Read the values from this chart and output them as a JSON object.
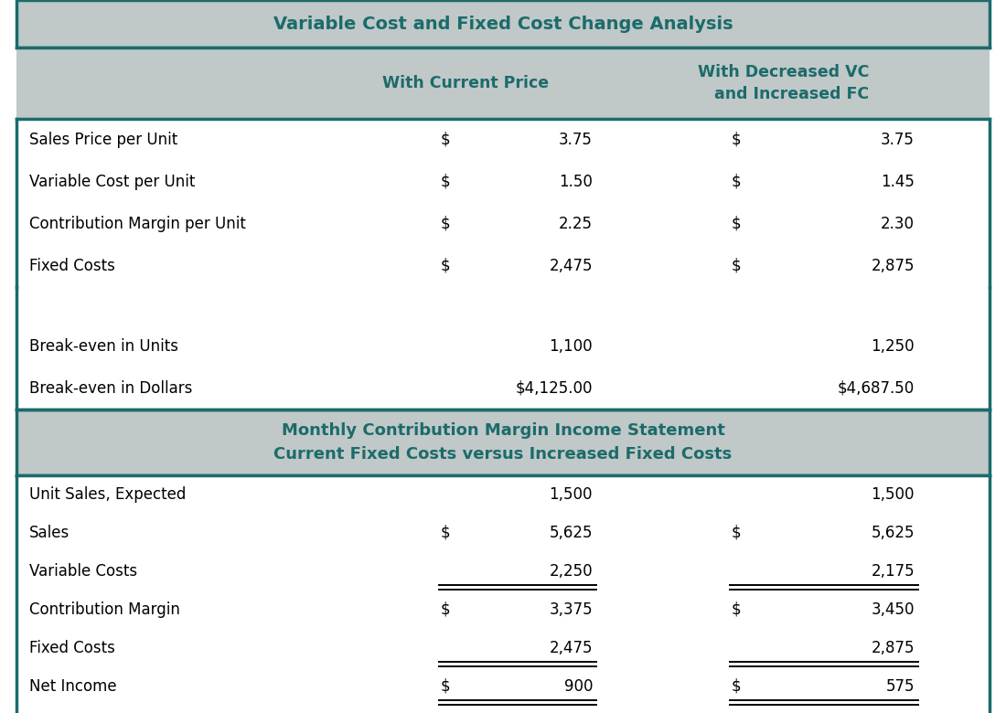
{
  "title1": "Variable Cost and Fixed Cost Change Analysis",
  "title2_line1": "Monthly Contribution Margin Income Statement",
  "title2_line2": "Current Fixed Costs versus Increased Fixed Costs",
  "col_header1": "With Current Price",
  "col_header2": "With Decreased VC\nand Increased FC",
  "section1_rows": [
    {
      "label": "Sales Price per Unit",
      "col1_dollar": true,
      "col1_val": "3.75",
      "col2_dollar": true,
      "col2_val": "3.75"
    },
    {
      "label": "Variable Cost per Unit",
      "col1_dollar": true,
      "col1_val": "1.50",
      "col2_dollar": true,
      "col2_val": "1.45"
    },
    {
      "label": "Contribution Margin per Unit",
      "col1_dollar": true,
      "col1_val": "2.25",
      "col2_dollar": true,
      "col2_val": "2.30"
    },
    {
      "label": "Fixed Costs",
      "col1_dollar": true,
      "col1_val": "2,475",
      "col2_dollar": true,
      "col2_val": "2,875"
    }
  ],
  "section1_break_rows": [
    {
      "label": "Break-even in Units",
      "col1_val": "1,100",
      "col2_val": "1,250"
    },
    {
      "label": "Break-even in Dollars",
      "col1_val": "$4,125.00",
      "col2_val": "$4,687.50"
    }
  ],
  "section2_rows": [
    {
      "label": "Unit Sales, Expected",
      "col1_dollar": false,
      "col1_val": "1,500",
      "col2_dollar": false,
      "col2_val": "1,500",
      "ul": false,
      "dul": false
    },
    {
      "label": "Sales",
      "col1_dollar": true,
      "col1_val": "5,625",
      "col2_dollar": true,
      "col2_val": "5,625",
      "ul": false,
      "dul": false
    },
    {
      "label": "Variable Costs",
      "col1_dollar": false,
      "col1_val": "2,250",
      "col2_dollar": false,
      "col2_val": "2,175",
      "ul": true,
      "dul": true
    },
    {
      "label": "Contribution Margin",
      "col1_dollar": true,
      "col1_val": "3,375",
      "col2_dollar": true,
      "col2_val": "3,450",
      "ul": false,
      "dul": false
    },
    {
      "label": "Fixed Costs",
      "col1_dollar": false,
      "col1_val": "2,475",
      "col2_dollar": false,
      "col2_val": "2,875",
      "ul": true,
      "dul": true
    },
    {
      "label": "Net Income",
      "col1_dollar": true,
      "col1_val": "900",
      "col2_dollar": true,
      "col2_val": "575",
      "ul": true,
      "dul": true
    }
  ],
  "teal": "#1C6B6B",
  "gray_bg": "#C0C8C8",
  "white": "#FFFFFF",
  "black": "#000000",
  "border_teal": "#1C6B6B"
}
